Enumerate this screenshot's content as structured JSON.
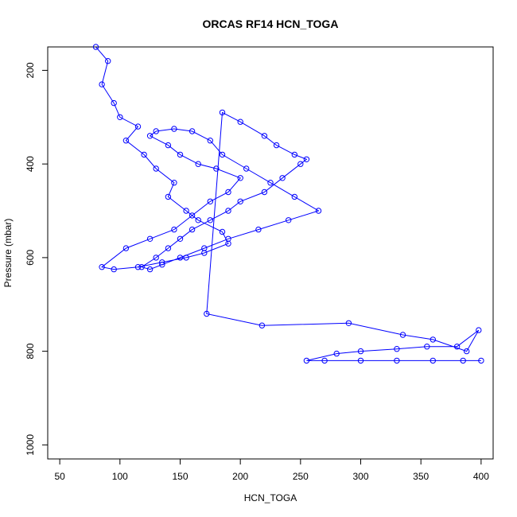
{
  "chart_data": {
    "type": "scatter",
    "title": "ORCAS RF14 HCN_TOGA",
    "xlabel": "HCN_TOGA",
    "ylabel": "Pressure (mbar)",
    "xlim": [
      40,
      410
    ],
    "ylim": [
      1030,
      150
    ],
    "y_reversed": true,
    "x_ticks": [
      50,
      100,
      150,
      200,
      250,
      300,
      350,
      400
    ],
    "y_ticks": [
      200,
      400,
      600,
      800,
      1000
    ],
    "grid": false,
    "legend": "none",
    "color": "#0000ff",
    "series": [
      {
        "style": "line+circles",
        "x": [
          80,
          90,
          85,
          95,
          100,
          115,
          105,
          120,
          130,
          145,
          140,
          155,
          165,
          185,
          190,
          170,
          155,
          135,
          115,
          95,
          85,
          105,
          125,
          145,
          160,
          175,
          190,
          200,
          180,
          165,
          150,
          140,
          125,
          130,
          145,
          160,
          175,
          185,
          205,
          225,
          245,
          265,
          240,
          215,
          190,
          170,
          150,
          135,
          125,
          118,
          130,
          140,
          150,
          160,
          175,
          190,
          200,
          220,
          235,
          250,
          255,
          245,
          230,
          220,
          200,
          185,
          172,
          218,
          290,
          335,
          360,
          388,
          398,
          380,
          355,
          330,
          300,
          280,
          255,
          270,
          300,
          330,
          360,
          385,
          400
        ],
        "y": [
          150,
          180,
          230,
          270,
          300,
          320,
          350,
          380,
          410,
          440,
          470,
          500,
          520,
          545,
          570,
          590,
          600,
          610,
          620,
          625,
          620,
          580,
          560,
          540,
          510,
          480,
          460,
          430,
          410,
          400,
          380,
          360,
          340,
          330,
          325,
          330,
          350,
          380,
          410,
          440,
          470,
          500,
          520,
          540,
          560,
          580,
          600,
          615,
          625,
          620,
          600,
          580,
          560,
          540,
          520,
          500,
          480,
          460,
          430,
          400,
          390,
          380,
          360,
          340,
          310,
          290,
          720,
          745,
          740,
          765,
          775,
          800,
          755,
          790,
          790,
          795,
          800,
          805,
          820,
          820,
          820,
          820,
          820,
          820,
          820
        ]
      }
    ]
  }
}
